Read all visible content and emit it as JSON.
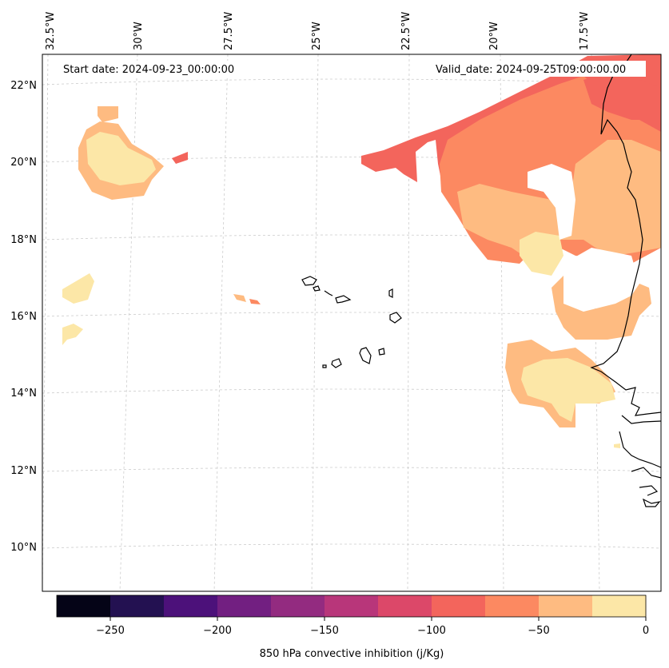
{
  "map": {
    "start_label": "Start date: 2024-09-23_00:00:00",
    "valid_label": "Valid_date: 2024-09-25T09:00:00.00",
    "lon_labels": [
      "32.5°W",
      "30°W",
      "27.5°W",
      "25°W",
      "22.5°W",
      "20°W",
      "17.5°W"
    ],
    "lat_labels": [
      "22°N",
      "20°N",
      "18°N",
      "16°N",
      "14°N",
      "12°N",
      "10°N"
    ]
  },
  "colorbar": {
    "label": "850 hPa convective inhibition (j/Kg)",
    "ticks": [
      "−250",
      "−200",
      "−150",
      "−100",
      "−50",
      "0"
    ],
    "levels": [
      -275,
      -250,
      -225,
      -200,
      -175,
      -150,
      -125,
      -100,
      -75,
      -50,
      -25,
      0
    ],
    "colors": [
      "#050417",
      "#231151",
      "#4c117a",
      "#721f81",
      "#932b80",
      "#b8367a",
      "#dc4869",
      "#f3655c",
      "#fc8961",
      "#febb81",
      "#fce7a7"
    ]
  }
}
